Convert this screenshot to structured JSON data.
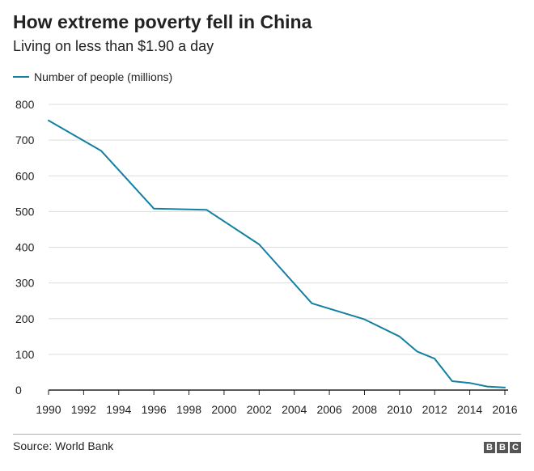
{
  "title": "How extreme poverty fell in China",
  "subtitle": "Living on less than $1.90 a day",
  "source": "Source: World Bank",
  "logo": [
    "B",
    "B",
    "C"
  ],
  "colors": {
    "series": "#1380A1",
    "grid": "#dddddd",
    "baseline": "#222222",
    "text": "#222222"
  },
  "chart_data": {
    "type": "line",
    "title": "How extreme poverty fell in China",
    "subtitle": "Living on less than $1.90 a day",
    "xlabel": "",
    "ylabel": "",
    "xlim": [
      1990,
      2016
    ],
    "ylim": [
      0,
      800
    ],
    "xticks": [
      1990,
      1992,
      1994,
      1996,
      1998,
      2000,
      2002,
      2004,
      2006,
      2008,
      2010,
      2012,
      2014,
      2016
    ],
    "yticks": [
      0,
      100,
      200,
      300,
      400,
      500,
      600,
      700,
      800
    ],
    "grid": true,
    "legend": "top-left",
    "series": [
      {
        "name": "Number of people (millions)",
        "x": [
          1990,
          1993,
          1996,
          1999,
          2002,
          2005,
          2008,
          2010,
          2011,
          2012,
          2013,
          2014,
          2015,
          2016
        ],
        "values": [
          755,
          670,
          508,
          505,
          408,
          243,
          198,
          150,
          108,
          88,
          25,
          20,
          10,
          7
        ]
      }
    ]
  }
}
